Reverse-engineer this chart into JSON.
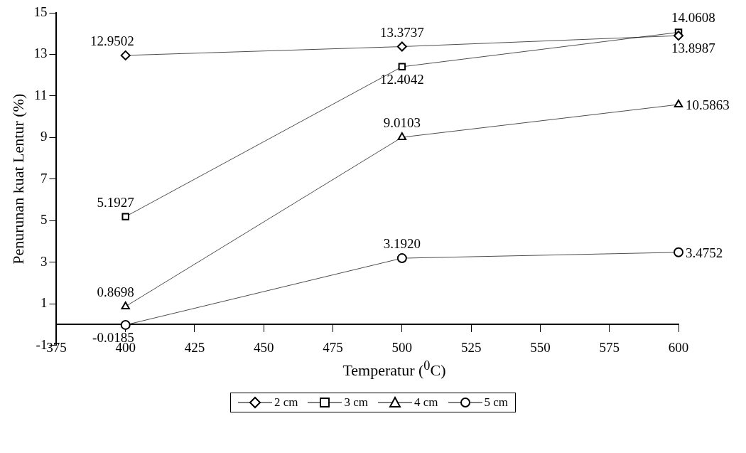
{
  "chart_data": {
    "type": "line",
    "xlabel": "Temperatur ($^{0}$C)",
    "ylabel": "Penurunan kuat Lentur (%)",
    "x": [
      400,
      500,
      600
    ],
    "xlim": [
      375,
      600
    ],
    "xticks": [
      375,
      400,
      425,
      450,
      475,
      500,
      525,
      550,
      575,
      600
    ],
    "ylim": [
      -1,
      15
    ],
    "yticks": [
      -1,
      1,
      3,
      5,
      7,
      9,
      11,
      13,
      15
    ],
    "grid": false,
    "legend": "bottom",
    "line_style": "solid",
    "series": [
      {
        "name": "2 cm",
        "color": "#000000",
        "marker": "diamond",
        "values": [
          12.9502,
          13.3737,
          13.8987
        ],
        "value_labels": [
          "12.9502",
          "13.3737",
          "13.8987"
        ]
      },
      {
        "name": "3 cm",
        "color": "#000000",
        "marker": "square",
        "values": [
          5.1927,
          12.4042,
          14.0608
        ],
        "value_labels": [
          "5.1927",
          "12.4042",
          "14.0608"
        ]
      },
      {
        "name": "4 cm",
        "color": "#000000",
        "marker": "triangle",
        "values": [
          0.8698,
          9.0103,
          10.5863
        ],
        "value_labels": [
          "0.8698",
          "9.0103",
          "10.5863"
        ]
      },
      {
        "name": "5 cm",
        "color": "#000000",
        "marker": "circle",
        "values": [
          -0.0185,
          3.192,
          3.4752
        ],
        "value_labels": [
          "-0.0185",
          "3.1920",
          "3.4752"
        ]
      }
    ]
  }
}
